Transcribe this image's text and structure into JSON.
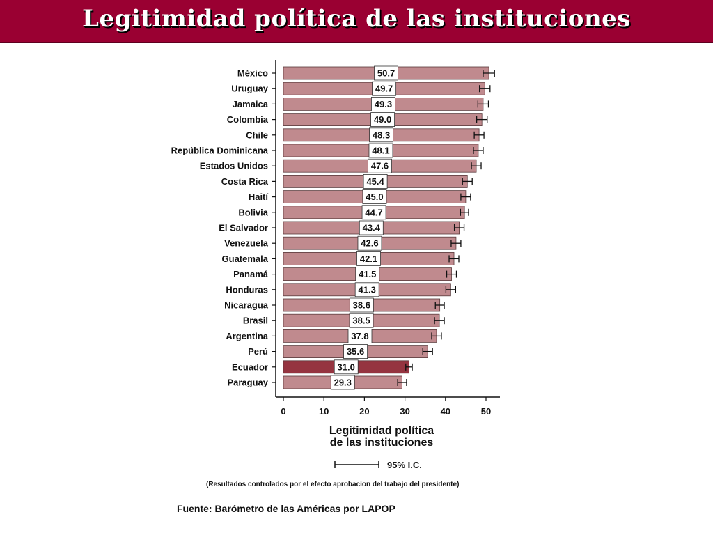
{
  "title": "Legitimidad política de las instituciones",
  "chart_data": {
    "type": "bar",
    "orientation": "horizontal",
    "categories": [
      "México",
      "Uruguay",
      "Jamaica",
      "Colombia",
      "Chile",
      "República Dominicana",
      "Estados Unidos",
      "Costa Rica",
      "Haití",
      "Bolivia",
      "El Salvador",
      "Venezuela",
      "Guatemala",
      "Panamá",
      "Honduras",
      "Nicaragua",
      "Brasil",
      "Argentina",
      "Perú",
      "Ecuador",
      "Paraguay"
    ],
    "value_labels": [
      "50.7",
      "49.7",
      "49.3",
      "49.0",
      "48.3",
      "48.1",
      "47.6",
      "45.4",
      "45.0",
      "44.7",
      "43.4",
      "42.6",
      "42.1",
      "41.5",
      "41.3",
      "38.6",
      "38.5",
      "37.8",
      "35.6",
      "31.0",
      "29.3"
    ],
    "values": [
      50.7,
      49.7,
      49.3,
      49.0,
      48.3,
      48.1,
      47.6,
      45.4,
      45.0,
      44.7,
      43.4,
      42.6,
      42.1,
      41.5,
      41.3,
      38.6,
      38.5,
      37.8,
      35.6,
      31.0,
      29.3
    ],
    "ci_half_width": [
      1.4,
      1.3,
      1.3,
      1.3,
      1.2,
      1.2,
      1.2,
      1.2,
      1.2,
      1.0,
      1.2,
      1.2,
      1.2,
      1.2,
      1.2,
      1.1,
      1.2,
      1.2,
      1.2,
      0.8,
      1.1
    ],
    "highlight": "Ecuador",
    "xlim": [
      0,
      53
    ],
    "x_ticks": [
      "0",
      "10",
      "20",
      "30",
      "40",
      "50"
    ],
    "xlabel_lines": [
      "Legitimidad política",
      "de las instituciones"
    ],
    "legend_label": "95% I.C.",
    "grid": false,
    "colors": {
      "bar": "#c08a8e",
      "bar_highlight": "#953440",
      "bar_stroke": "#5a3a3c",
      "error_bar": "#111111",
      "value_box_fill": "#ffffff",
      "value_box_stroke": "#333333"
    }
  },
  "footnote": "(Resultados controlados por el efecto  aprobacion del trabajo del presidente)",
  "source": "Fuente: Barómetro de las Américas por LAPOP",
  "colors": {
    "banner": "#9a0032",
    "title_text": "#ffffff"
  }
}
